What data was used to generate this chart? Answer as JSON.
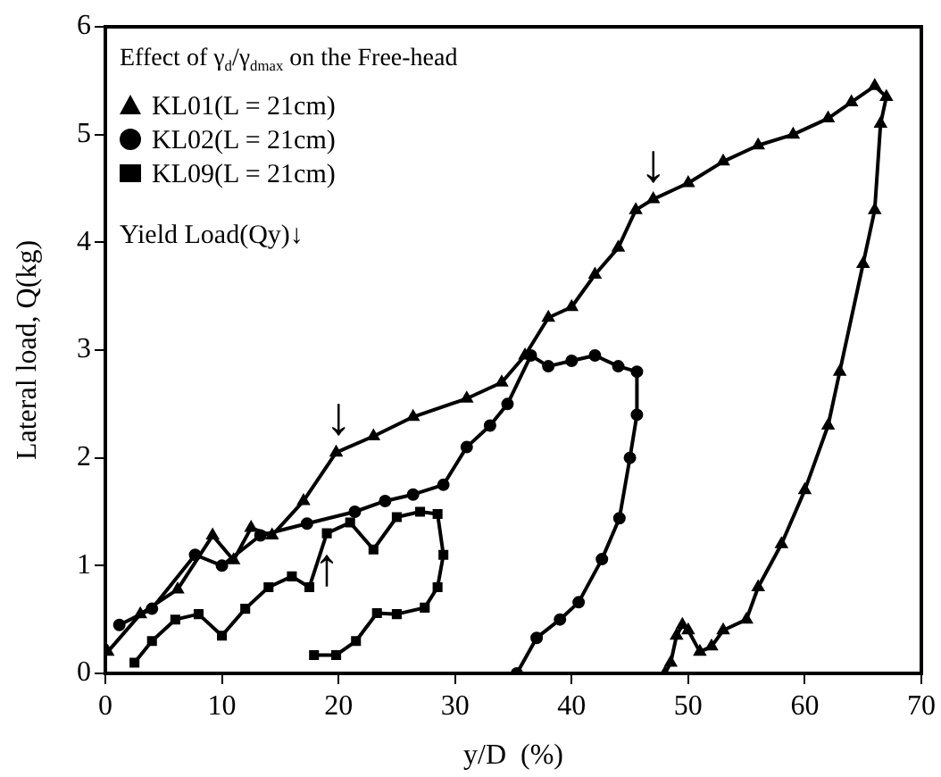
{
  "chart_data": {
    "type": "line",
    "title": "Effect of γ$_{d}$/γ$_{dmax}$ on the Free-head",
    "xlabel": "y/D  (%)",
    "ylabel": "Lateral load, Q(kg)",
    "xlim": [
      0,
      70
    ],
    "ylim": [
      0,
      6
    ],
    "xticks": [
      0,
      10,
      20,
      30,
      40,
      50,
      60,
      70
    ],
    "yticks": [
      0,
      1,
      2,
      3,
      4,
      5,
      6
    ],
    "grid": false,
    "legend": "top left",
    "series": [
      {
        "name": "KL01(L = 21cm)",
        "color": "#000000",
        "marker": "triangle",
        "x": [
          0.2,
          3,
          6.2,
          9.2,
          11,
          12.5,
          14.3,
          17,
          19.8,
          23,
          26.4,
          31,
          34,
          36,
          38,
          40,
          42,
          44,
          45.5,
          47,
          50,
          53,
          56,
          59,
          62,
          64,
          66,
          67,
          66.5,
          66,
          65,
          63,
          62,
          60,
          58,
          56,
          55,
          53,
          52,
          51,
          50,
          49.5,
          49,
          48.5,
          48
        ],
        "values": [
          0.2,
          0.55,
          0.78,
          1.28,
          1.05,
          1.35,
          1.28,
          1.6,
          2.05,
          2.2,
          2.38,
          2.55,
          2.7,
          2.95,
          3.3,
          3.4,
          3.7,
          3.95,
          4.3,
          4.4,
          4.55,
          4.75,
          4.9,
          5.0,
          5.15,
          5.3,
          5.45,
          5.35,
          5.1,
          4.3,
          3.8,
          2.8,
          2.3,
          1.7,
          1.2,
          0.8,
          0.5,
          0.4,
          0.25,
          0.2,
          0.4,
          0.45,
          0.35,
          0.1,
          0
        ]
      },
      {
        "name": "KL02(L = 21cm)",
        "color": "#000000",
        "marker": "circle",
        "x": [
          1.2,
          4,
          7.7,
          10,
          13.3,
          17.3,
          21.4,
          24,
          26.4,
          29,
          31,
          33,
          34.5,
          36.5,
          38,
          40,
          42,
          44,
          45.6,
          45.6,
          45,
          44.1,
          42.6,
          40.6,
          39,
          37,
          35.3
        ],
        "values": [
          0.45,
          0.6,
          1.1,
          1.0,
          1.28,
          1.39,
          1.5,
          1.6,
          1.66,
          1.75,
          2.1,
          2.3,
          2.5,
          2.95,
          2.85,
          2.9,
          2.95,
          2.85,
          2.8,
          2.4,
          2.0,
          1.44,
          1.06,
          0.66,
          0.5,
          0.33,
          0
        ]
      },
      {
        "name": "KL09(L = 21cm)",
        "color": "#000000",
        "marker": "square",
        "x": [
          2.5,
          4,
          6,
          8,
          10,
          12,
          14,
          16,
          17.5,
          19,
          21,
          23,
          25,
          27,
          28.5,
          29,
          28.5,
          27.4,
          25,
          23.3,
          21.5,
          19.8,
          17.9
        ],
        "values": [
          0.1,
          0.3,
          0.5,
          0.55,
          0.35,
          0.6,
          0.8,
          0.9,
          0.8,
          1.3,
          1.4,
          1.15,
          1.45,
          1.5,
          1.48,
          1.1,
          0.8,
          0.61,
          0.55,
          0.56,
          0.3,
          0.17,
          0.17
        ]
      }
    ],
    "annotations": [
      "Yield Load(Qy)↓",
      {
        "text": "↓",
        "x": 20,
        "y": 2.1
      },
      {
        "text": "↓",
        "x": 47,
        "y": 4.45
      },
      {
        "text": "↑",
        "x": 19,
        "y": 1.2
      }
    ]
  }
}
